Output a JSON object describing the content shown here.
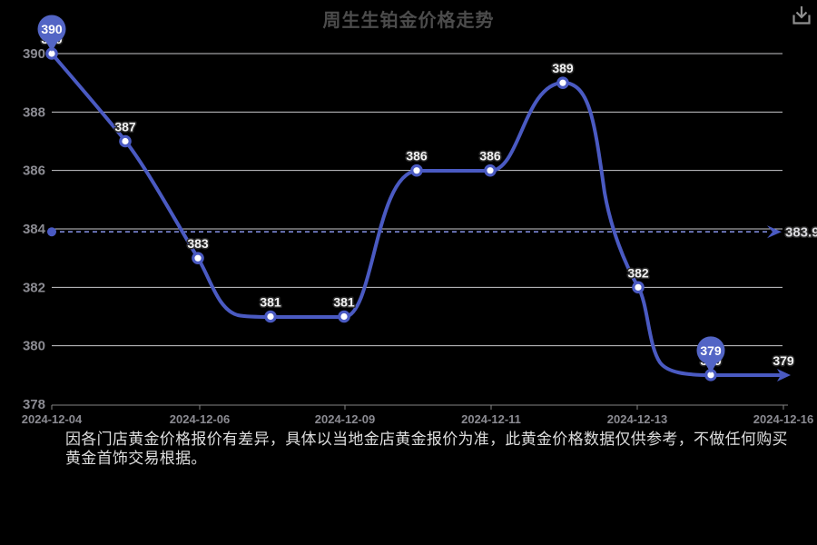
{
  "header": {
    "title": "周生生铂金价格走势",
    "download_icon": "download"
  },
  "chart_data": {
    "type": "line",
    "title": "周生生铂金价格走势",
    "x_tick_labels": [
      "2024-12-04",
      "2024-12-06",
      "2024-12-09",
      "2024-12-11",
      "2024-12-13",
      "2024-12-16"
    ],
    "y_ticks": [
      390,
      388,
      386,
      384,
      382,
      380,
      378
    ],
    "ylim": [
      378,
      391
    ],
    "values": [
      390,
      387,
      383,
      381,
      381,
      386,
      386,
      389,
      382,
      379,
      379
    ],
    "point_labels": [
      "390",
      "387",
      "383",
      "381",
      "381",
      "386",
      "386",
      "389",
      "382",
      "379",
      "379"
    ],
    "current_price": 383.9,
    "current_price_label": "383.9",
    "badges": [
      {
        "index": 0,
        "label": "390"
      },
      {
        "index": 9,
        "label": "379"
      }
    ],
    "grid": true,
    "legend": "none",
    "colors": {
      "background": "#000000",
      "line": "#4a5ac2",
      "balloon": "#5365c5",
      "grid": "#ededf1",
      "axis": "#858585",
      "dashed": "#7d88d8",
      "marker_fill": "#ffffff"
    }
  },
  "footer": {
    "disclaimer": "因各门店黄金价格报价有差异，具体以当地金店黄金报价为准，此黄金价格数据仅供参考，不做任何购买黄金首饰交易根据。"
  }
}
